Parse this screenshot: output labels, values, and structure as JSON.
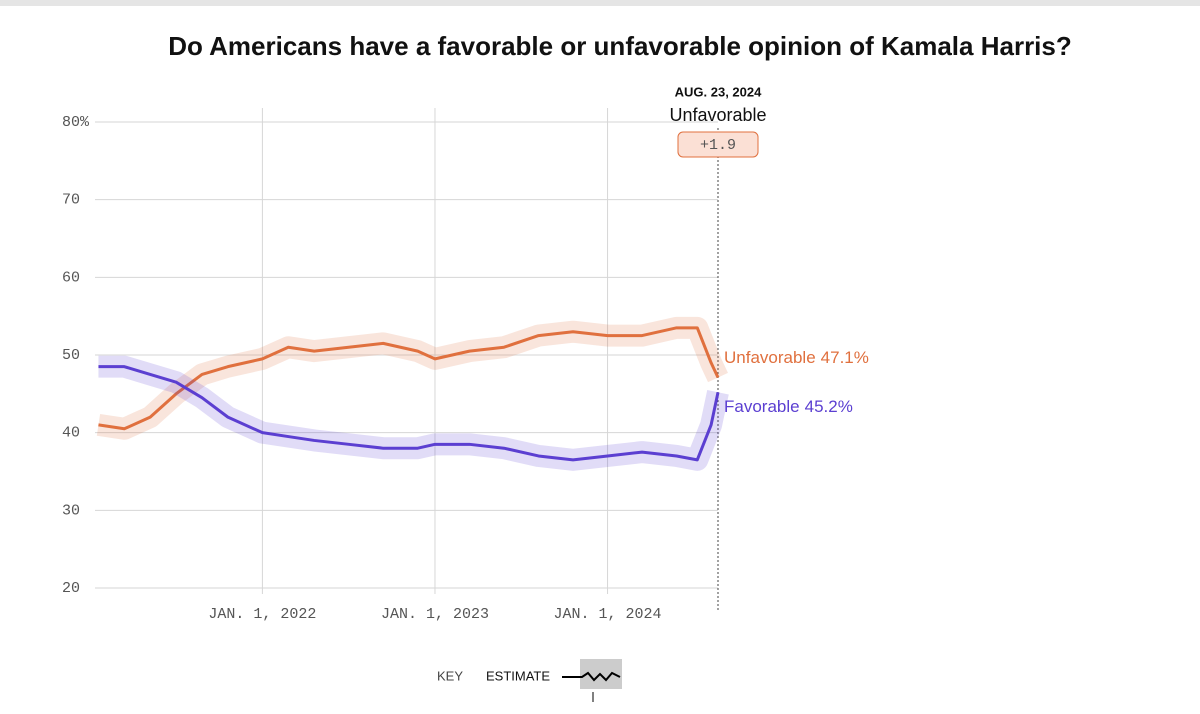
{
  "chart_data": {
    "type": "line",
    "title": "Do Americans have a favorable or unfavorable opinion of Kamala Harris?",
    "x": [
      2021.05,
      2021.2,
      2021.35,
      2021.5,
      2021.65,
      2021.8,
      2022.0,
      2022.15,
      2022.3,
      2022.5,
      2022.7,
      2022.9,
      2023.0,
      2023.2,
      2023.4,
      2023.6,
      2023.8,
      2024.0,
      2024.2,
      2024.4,
      2024.52,
      2024.6,
      2024.64
    ],
    "series": [
      {
        "name": "Unfavorable",
        "color": "#e0703e",
        "values": [
          41,
          40.5,
          42,
          45,
          47.5,
          48.5,
          49.5,
          51,
          50.5,
          51,
          51.5,
          50.5,
          49.5,
          50.5,
          51,
          52.5,
          53,
          52.5,
          52.5,
          53.5,
          53.5,
          49,
          47.1
        ],
        "value_labels": [
          null,
          null,
          null,
          null,
          null,
          null,
          null,
          null,
          null,
          null,
          null,
          null,
          null,
          null,
          null,
          null,
          null,
          null,
          null,
          null,
          null,
          null,
          "47.1%"
        ]
      },
      {
        "name": "Favorable",
        "color": "#5b3fd1",
        "values": [
          48.5,
          48.5,
          47.5,
          46.5,
          44.5,
          42,
          40,
          39.5,
          39,
          38.5,
          38,
          38,
          38.5,
          38.5,
          38,
          37,
          36.5,
          37,
          37.5,
          37,
          36.5,
          41,
          45.2
        ],
        "value_labels": [
          null,
          null,
          null,
          null,
          null,
          null,
          null,
          null,
          null,
          null,
          null,
          null,
          null,
          null,
          null,
          null,
          null,
          null,
          null,
          null,
          null,
          null,
          "45.2%"
        ]
      }
    ],
    "xlim": [
      2021.03,
      2024.64
    ],
    "xticks": [
      {
        "value": 2022,
        "label": "JAN. 1, 2022"
      },
      {
        "value": 2023,
        "label": "JAN. 1, 2023"
      },
      {
        "value": 2024,
        "label": "JAN. 1, 2024"
      }
    ],
    "ylim": [
      20,
      80
    ],
    "yticks": [
      20,
      30,
      40,
      50,
      60,
      70,
      {
        "value": 80,
        "label": "80%"
      }
    ],
    "grid": true,
    "annotation": {
      "date": "AUG. 23, 2024",
      "leader": "Unfavorable",
      "margin": "+1.9"
    },
    "key": {
      "title": "KEY",
      "label": "ESTIMATE"
    }
  }
}
